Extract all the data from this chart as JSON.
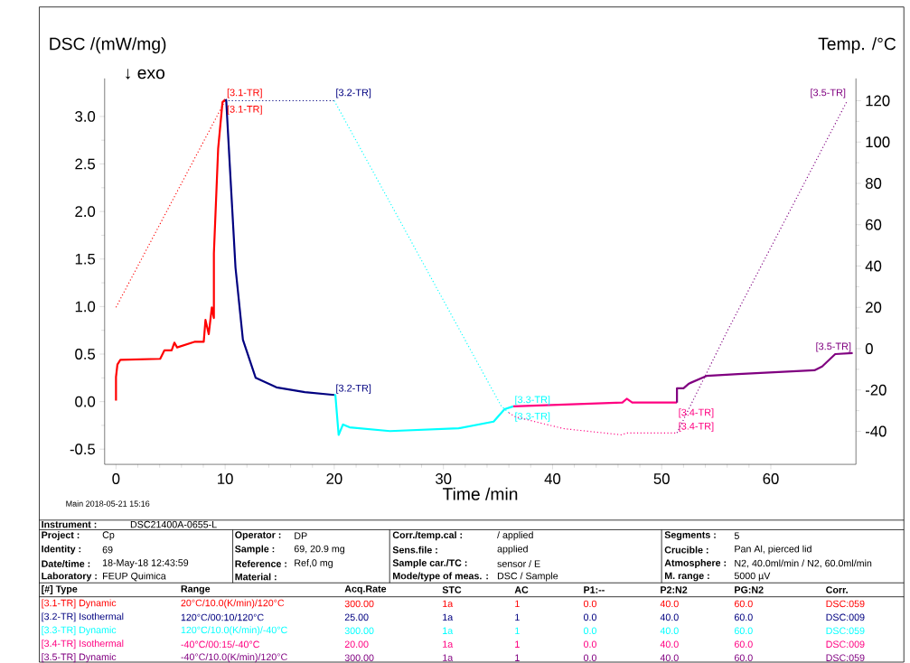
{
  "chart_data": {
    "type": "line",
    "xlabel": "Time /min",
    "ylabel": "DSC /(mW/mg)",
    "y2label": "Temp. /°C",
    "xlim": [
      -1.04,
      67.8
    ],
    "xticks": [
      0,
      10,
      20,
      30,
      40,
      50,
      60
    ],
    "ylim": [
      -0.66,
      3.4
    ],
    "yticks": [
      {
        "value": -0.5,
        "label": "-0.5"
      },
      {
        "value": 0,
        "label": "0.0"
      },
      {
        "value": 0.5,
        "label": "0.5"
      },
      {
        "value": 1,
        "label": "1.0"
      },
      {
        "value": 1.5,
        "label": "1.5"
      },
      {
        "value": 2,
        "label": "2.0"
      },
      {
        "value": 2.5,
        "label": "2.5"
      },
      {
        "value": 3,
        "label": "3.0"
      }
    ],
    "y2lim": [
      -56,
      130.8
    ],
    "y2ticks": [
      -40,
      -20,
      0,
      20,
      40,
      60,
      80,
      100,
      120
    ],
    "series": [
      {
        "color": "#ff0000",
        "line_style": "solid",
        "x": [
          0,
          0,
          0.13,
          0.4,
          4.05,
          4.44,
          5.1,
          5.35,
          5.6,
          7.24,
          8.04,
          8.2,
          8.5,
          8.78,
          8.97,
          8.97,
          9.36,
          9.76,
          10.03
        ],
        "values": [
          0.01,
          0.26,
          0.39,
          0.44,
          0.45,
          0.54,
          0.54,
          0.62,
          0.57,
          0.63,
          0.63,
          0.86,
          0.71,
          0.99,
          0.88,
          1.56,
          2.66,
          3.15,
          3.18
        ]
      },
      {
        "color": "#000080",
        "line_style": "solid",
        "x": [
          10.03,
          10.1,
          10.43,
          10.95,
          11.63,
          12.8,
          14.7,
          17.3,
          20.0
        ],
        "values": [
          3.18,
          3.17,
          2.48,
          1.41,
          0.65,
          0.25,
          0.15,
          0.1,
          0.07
        ]
      },
      {
        "color": "#00ffff",
        "line_style": "solid",
        "x": [
          20.0,
          20.1,
          20.4,
          20.8,
          21.4,
          25.1,
          31.4,
          34.6,
          35.6,
          36.4
        ],
        "values": [
          0.07,
          0.07,
          -0.35,
          -0.24,
          -0.27,
          -0.31,
          -0.28,
          -0.21,
          -0.08,
          -0.05
        ]
      },
      {
        "color": "#ff0080",
        "line_style": "solid",
        "x": [
          36.4,
          46.4,
          46.8,
          47.3,
          51.4
        ],
        "values": [
          -0.05,
          -0.01,
          0.03,
          -0.01,
          -0.01
        ]
      },
      {
        "color": "#800080",
        "line_style": "solid",
        "x": [
          51.4,
          51.4,
          52.0,
          52.5,
          54.1,
          57.0,
          64.0,
          64.7,
          65.9,
          67.5
        ],
        "values": [
          -0.01,
          0.14,
          0.14,
          0.19,
          0.27,
          0.29,
          0.33,
          0.37,
          0.5,
          0.51
        ]
      },
      {
        "color": "#ff0000",
        "line_style": "dotted",
        "axis": "y2",
        "x": [
          0,
          10
        ],
        "values": [
          20,
          120
        ]
      },
      {
        "color": "#000080",
        "line_style": "dotted",
        "axis": "y2",
        "x": [
          10,
          20
        ],
        "values": [
          120,
          120
        ]
      },
      {
        "color": "#00ffff",
        "line_style": "dotted",
        "axis": "y2",
        "x": [
          20,
          35.3,
          36
        ],
        "values": [
          120,
          -27.8,
          -31
        ]
      },
      {
        "color": "#ff0080",
        "line_style": "dotted",
        "axis": "y2",
        "x": [
          36,
          36.6,
          41,
          46.3,
          46.8,
          51.4
        ],
        "values": [
          -31,
          -33,
          -38.7,
          -41.7,
          -40.8,
          -40.8
        ]
      },
      {
        "color": "#800080",
        "line_style": "dotted",
        "axis": "y2",
        "x": [
          51.4,
          56,
          67
        ],
        "values": [
          -40.8,
          8.4,
          120
        ]
      }
    ],
    "annotations": [
      "↓ exo",
      "Main 2018-05-21 15:16",
      "Instrument :",
      "DSC21400A-0655-L",
      "Project :",
      "Cp",
      "Operator :",
      "DP",
      "Corr./temp.cal :",
      "/ applied",
      "Segments :",
      "5",
      "Identity :",
      "69",
      "Sample :",
      "69, 20.9 mg",
      "Sens.file :",
      "applied",
      "Crucible :",
      "Pan Al, pierced lid",
      "Date/time :",
      "18-May-18 12:43:59",
      "Reference :",
      "Ref,0 mg",
      "Sample car./TC :",
      "sensor / E",
      "Atmosphere :",
      "N2, 40.0ml/min / N2, 60.0ml/min",
      "Laboratory :",
      "FEUP Quimica",
      "Material :",
      "Mode/type of meas. :",
      "DSC / Sample",
      "M. range :",
      "5000 µV",
      "[#] Type",
      "Range",
      "Acq.Rate",
      "STC",
      "AC",
      "P1:--",
      "P2:N2",
      "PG:N2",
      "Corr.",
      "[3.1-TR] Dynamic",
      "20°C/10.0(K/min)/120°C",
      "300.00",
      "1a",
      "1",
      "0.0",
      "40.0",
      "60.0",
      "DSC:059",
      "[3.2-TR] Isothermal",
      "120°C/00:10/120°C",
      "25.00",
      "1a",
      "1",
      "0.0",
      "40.0",
      "60.0",
      "DSC:009",
      "[3.3-TR] Dynamic",
      "120°C/10.0(K/min)/-40°C",
      "300.00",
      "1a",
      "1",
      "0.0",
      "40.0",
      "60.0",
      "DSC:059",
      "[3.4-TR] Isothermal",
      "-40°C/00:15/-40°C",
      "20.00",
      "1a",
      "1",
      "0.0",
      "40.0",
      "60.0",
      "DSC:009",
      "[3.5-TR] Dynamic",
      "-40°C/10.0(K/min)/120°C",
      "300.00",
      "1a",
      "1",
      "0.0",
      "40.0",
      "60.0",
      "DSC:059",
      {
        "text": "[3.1-TR]",
        "x": 10.03,
        "y": 3.18
      },
      {
        "text": "[3.1-TR]",
        "x": 10.03,
        "y": 3.18
      },
      {
        "text": "[3.2-TR]",
        "x": 20.0,
        "y": 3.18
      },
      {
        "text": "[3.2-TR]",
        "x": 20.0,
        "y": 0.07
      },
      {
        "text": "[3.3-TR]",
        "x": 36.4,
        "y": -0.05
      },
      {
        "text": "[3.3-TR]",
        "x": 36.4,
        "y": -0.05
      },
      {
        "text": "[3.4-TR]",
        "x": 51.4,
        "y": -0.01
      },
      {
        "text": "[3.4-TR]",
        "x": 51.4,
        "y": -0.33
      },
      {
        "text": "[3.5-TR]",
        "x": 67.0,
        "y": 3.18
      },
      {
        "text": "[3.5-TR]",
        "x": 67.5,
        "y": 0.51
      }
    ]
  }
}
